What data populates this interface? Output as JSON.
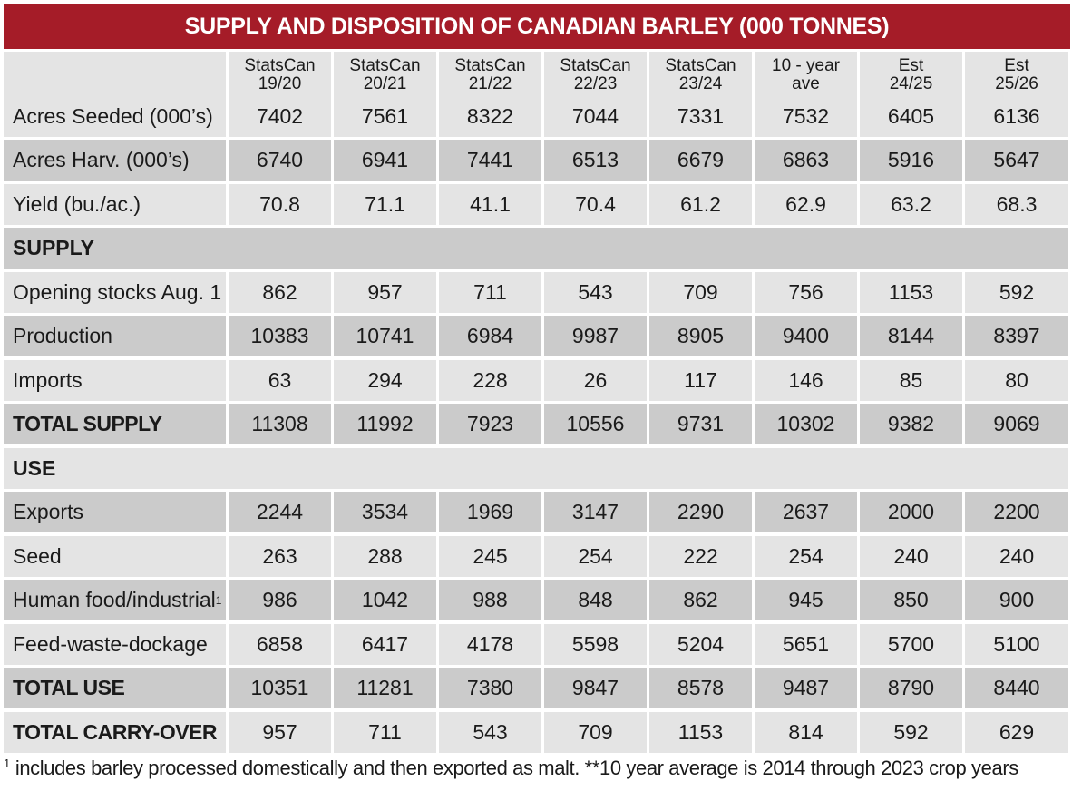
{
  "title": "SUPPLY AND DISPOSITION OF CANADIAN BARLEY (000 TONNES)",
  "chart_data": {
    "type": "table",
    "columns": [
      {
        "line1": "StatsCan",
        "line2": "19/20"
      },
      {
        "line1": "StatsCan",
        "line2": "20/21"
      },
      {
        "line1": "StatsCan",
        "line2": "21/22"
      },
      {
        "line1": "StatsCan",
        "line2": "22/23"
      },
      {
        "line1": "StatsCan",
        "line2": "23/24"
      },
      {
        "line1": "10 - year",
        "line2": "ave"
      },
      {
        "line1": "Est",
        "line2": "24/25"
      },
      {
        "line1": "Est",
        "line2": "25/26"
      }
    ],
    "rows": {
      "acres_seeded": {
        "label": "Acres Seeded (000’s)",
        "values": [
          "7402",
          "7561",
          "8322",
          "7044",
          "7331",
          "7532",
          "6405",
          "6136"
        ]
      },
      "acres_harv": {
        "label": "Acres Harv. (000’s)",
        "values": [
          "6740",
          "6941",
          "7441",
          "6513",
          "6679",
          "6863",
          "5916",
          "5647"
        ]
      },
      "yield": {
        "label": "Yield (bu./ac.)",
        "values": [
          "70.8",
          "71.1",
          "41.1",
          "70.4",
          "61.2",
          "62.9",
          "63.2",
          "68.3"
        ]
      },
      "supply_header": {
        "label": "SUPPLY"
      },
      "opening_stocks": {
        "label": "Opening stocks Aug. 1",
        "values": [
          "862",
          "957",
          "711",
          "543",
          "709",
          "756",
          "1153",
          "592"
        ]
      },
      "production": {
        "label": "Production",
        "values": [
          "10383",
          "10741",
          "6984",
          "9987",
          "8905",
          "9400",
          "8144",
          "8397"
        ]
      },
      "imports": {
        "label": "Imports",
        "values": [
          "63",
          "294",
          "228",
          "26",
          "117",
          "146",
          "85",
          "80"
        ]
      },
      "total_supply": {
        "label": "TOTAL SUPPLY",
        "values": [
          "11308",
          "11992",
          "7923",
          "10556",
          "9731",
          "10302",
          "9382",
          "9069"
        ]
      },
      "use_header": {
        "label": "USE"
      },
      "exports": {
        "label": "Exports",
        "values": [
          "2244",
          "3534",
          "1969",
          "3147",
          "2290",
          "2637",
          "2000",
          "2200"
        ]
      },
      "seed": {
        "label": "Seed",
        "values": [
          "263",
          "288",
          "245",
          "254",
          "222",
          "254",
          "240",
          "240"
        ]
      },
      "human_food": {
        "label": "Human food/industrial",
        "footnote_mark": "1",
        "values": [
          "986",
          "1042",
          "988",
          "848",
          "862",
          "945",
          "850",
          "900"
        ]
      },
      "feed_waste": {
        "label": "Feed-waste-dockage",
        "values": [
          "6858",
          "6417",
          "4178",
          "5598",
          "5204",
          "5651",
          "5700",
          "5100"
        ]
      },
      "total_use": {
        "label": "TOTAL USE",
        "values": [
          "10351",
          "11281",
          "7380",
          "9847",
          "8578",
          "9487",
          "8790",
          "8440"
        ]
      },
      "total_carry_over": {
        "label": "TOTAL CARRY-OVER",
        "values": [
          "957",
          "711",
          "543",
          "709",
          "1153",
          "814",
          "592",
          "629"
        ]
      }
    }
  },
  "footnote": {
    "mark": "1",
    "text": "includes barley processed domestically and then exported as malt.  **10 year average is 2014 through 2023 crop years"
  },
  "colors": {
    "title_bg": "#a51c28",
    "title_text": "#ffffff",
    "row_light": "#e4e4e4",
    "row_dark": "#cbcbcb"
  }
}
